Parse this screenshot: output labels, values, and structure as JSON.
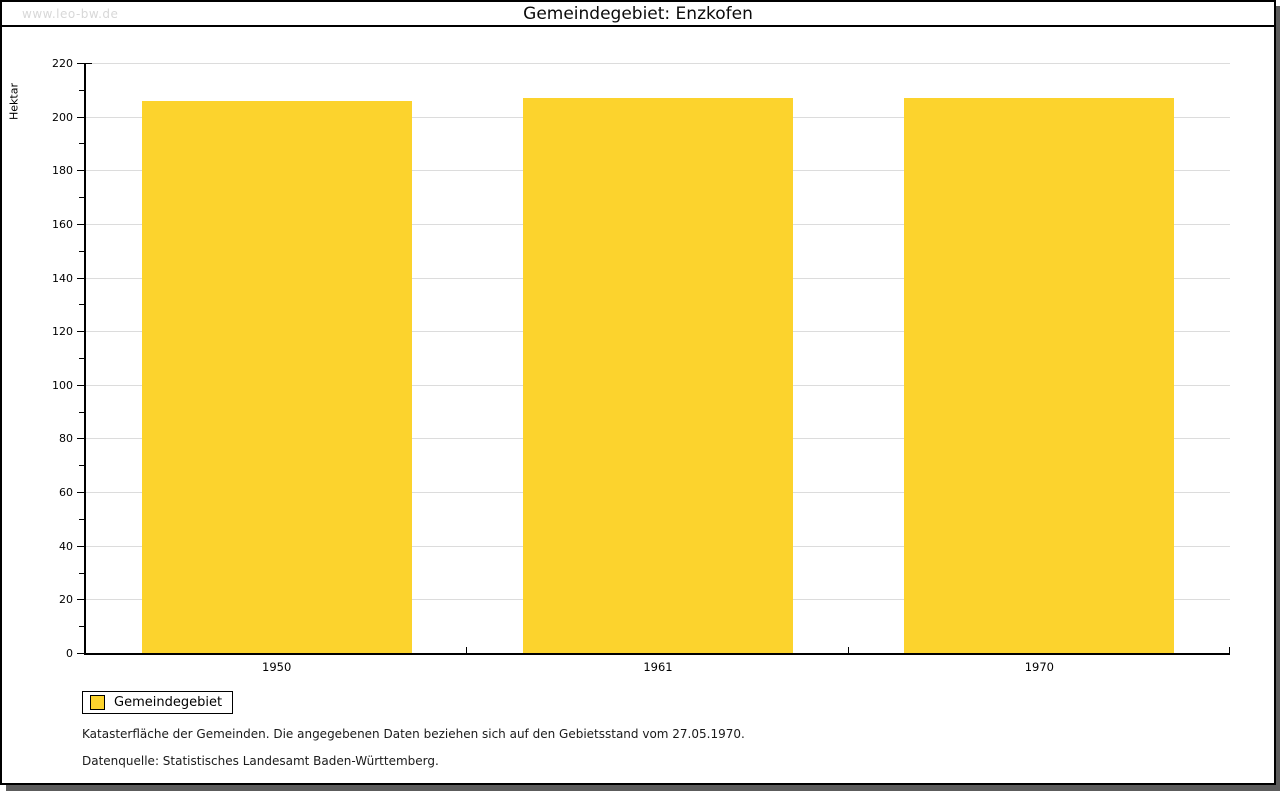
{
  "page": {
    "watermark": "www.leo-bw.de",
    "title": "Gemeindegebiet: Enzkofen"
  },
  "chart_data": {
    "type": "bar",
    "title": "Gemeindegebiet: Enzkofen",
    "categories": [
      "1950",
      "1961",
      "1970"
    ],
    "series": [
      {
        "name": "Gemeindegebiet",
        "values": [
          206,
          207,
          207
        ]
      }
    ],
    "xlabel": "",
    "ylabel": "Hektar",
    "ylim": [
      0,
      220
    ],
    "ytick_major_step": 20,
    "ytick_minor_step": 10,
    "grid": true,
    "bar_color": "#FCD32D",
    "legend_position": "bottom-left"
  },
  "legend": {
    "items": [
      {
        "label": "Gemeindegebiet",
        "color": "#FCD32D"
      }
    ]
  },
  "footer": {
    "line1": "Katasterfläche der Gemeinden. Die angegebenen Daten beziehen sich auf den Gebietsstand vom 27.05.1970.",
    "line2": "Datenquelle: Statistisches Landesamt Baden-Württemberg."
  }
}
